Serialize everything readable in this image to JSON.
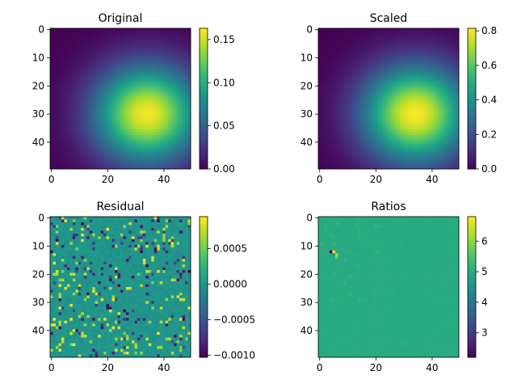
{
  "figure": {
    "colormap_stops": [
      "#440154",
      "#482878",
      "#3e4989",
      "#31688e",
      "#26828e",
      "#1f9e89",
      "#35b779",
      "#6ece58",
      "#b5de2b",
      "#fde725"
    ]
  },
  "chart_data": [
    {
      "type": "heatmap",
      "title": "Original",
      "xlabel": "",
      "ylabel": "",
      "grid_size": [
        50,
        50
      ],
      "xlim": [
        0,
        50
      ],
      "ylim": [
        50,
        0
      ],
      "xticks": [
        "0",
        "20",
        "40"
      ],
      "yticks": [
        "0",
        "10",
        "20",
        "30",
        "40"
      ],
      "field": {
        "kind": "gaussian",
        "peak_x": 34,
        "peak_y": 30,
        "sigma_x": 13,
        "sigma_y": 12,
        "peak_value": 0.16
      },
      "colorbar": {
        "min": 0.0,
        "max": 0.163,
        "ticks": [
          0.0,
          0.05,
          0.1,
          0.15
        ],
        "tick_labels": [
          "0.00",
          "0.05",
          "0.10",
          "0.15"
        ]
      }
    },
    {
      "type": "heatmap",
      "title": "Scaled",
      "xlabel": "",
      "ylabel": "",
      "grid_size": [
        50,
        50
      ],
      "xlim": [
        0,
        50
      ],
      "ylim": [
        50,
        0
      ],
      "xticks": [
        "0",
        "20",
        "40"
      ],
      "yticks": [
        "0",
        "10",
        "20",
        "30",
        "40"
      ],
      "field": {
        "kind": "gaussian",
        "peak_x": 34,
        "peak_y": 30,
        "sigma_x": 13,
        "sigma_y": 12,
        "peak_value": 0.81
      },
      "colorbar": {
        "min": 0.0,
        "max": 0.815,
        "ticks": [
          0.0,
          0.2,
          0.4,
          0.6,
          0.8
        ],
        "tick_labels": [
          "0.0",
          "0.2",
          "0.4",
          "0.6",
          "0.8"
        ]
      }
    },
    {
      "type": "heatmap",
      "title": "Residual",
      "xlabel": "",
      "ylabel": "",
      "grid_size": [
        50,
        50
      ],
      "xlim": [
        0,
        50
      ],
      "ylim": [
        50,
        0
      ],
      "xticks": [
        "0",
        "20",
        "40"
      ],
      "yticks": [
        "0",
        "10",
        "20",
        "30",
        "40"
      ],
      "field": {
        "kind": "noise",
        "base_value": 0.0,
        "seed": 7
      },
      "colorbar": {
        "min": -0.00103,
        "max": 0.00095,
        "ticks": [
          -0.001,
          -0.0005,
          0.0,
          0.0005
        ],
        "tick_labels": [
          "−0.0010",
          "−0.0005",
          "0.0000",
          "0.0005"
        ]
      }
    },
    {
      "type": "heatmap",
      "title": "Ratios",
      "xlabel": "",
      "ylabel": "",
      "grid_size": [
        50,
        50
      ],
      "xlim": [
        0,
        50
      ],
      "ylim": [
        50,
        0
      ],
      "xticks": [
        "0",
        "20",
        "40"
      ],
      "yticks": [
        "0",
        "10",
        "20",
        "30",
        "40"
      ],
      "field": {
        "kind": "ratio",
        "base_value": 5.0,
        "seed": 11,
        "outliers": [
          {
            "x": 4,
            "y": 12,
            "value": 2.2
          },
          {
            "x": 5,
            "y": 12,
            "value": 6.8
          },
          {
            "x": 6,
            "y": 13,
            "value": 6.2
          },
          {
            "x": 6,
            "y": 14,
            "value": 5.8
          },
          {
            "x": 5,
            "y": 13,
            "value": 4.4
          }
        ]
      },
      "colorbar": {
        "min": 2.2,
        "max": 6.8,
        "ticks": [
          3,
          4,
          5,
          6
        ],
        "tick_labels": [
          "3",
          "4",
          "5",
          "6"
        ]
      }
    }
  ]
}
